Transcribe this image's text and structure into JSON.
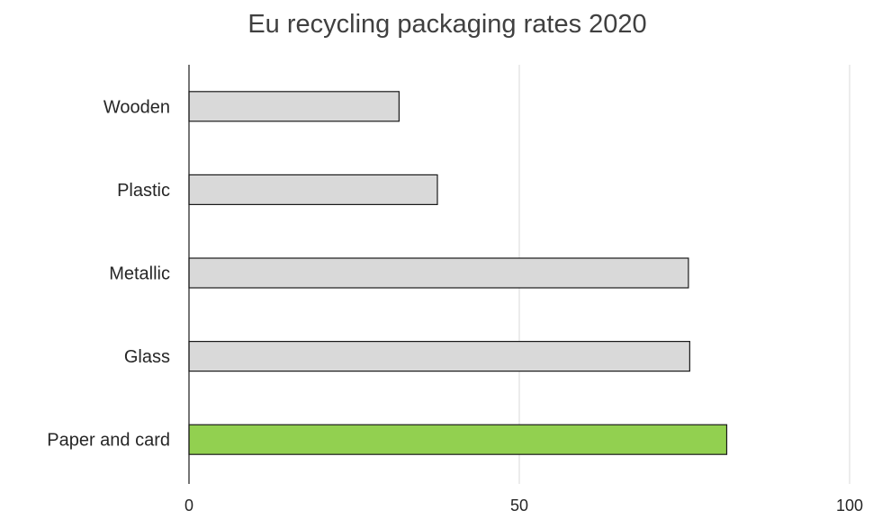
{
  "chart_data": {
    "type": "bar",
    "orientation": "horizontal",
    "title": "Eu recycling packaging rates 2020",
    "categories": [
      "Wooden",
      "Plastic",
      "Metallic",
      "Glass",
      "Paper and card"
    ],
    "values": [
      31.8,
      37.6,
      75.6,
      75.8,
      81.4
    ],
    "xlim": [
      0,
      100
    ],
    "xticks": [
      "0",
      "50",
      "100"
    ],
    "grid": true,
    "legend": "none",
    "colors": {
      "default_bar": "#d9d9d9",
      "highlight_bar": "#92d050",
      "bar_stroke": "#1a1a1a",
      "grid": "#d9d9d9",
      "axis": "#1a1a1a",
      "text": "#262626",
      "title": "#404040"
    },
    "highlight_category": "Paper and card"
  }
}
